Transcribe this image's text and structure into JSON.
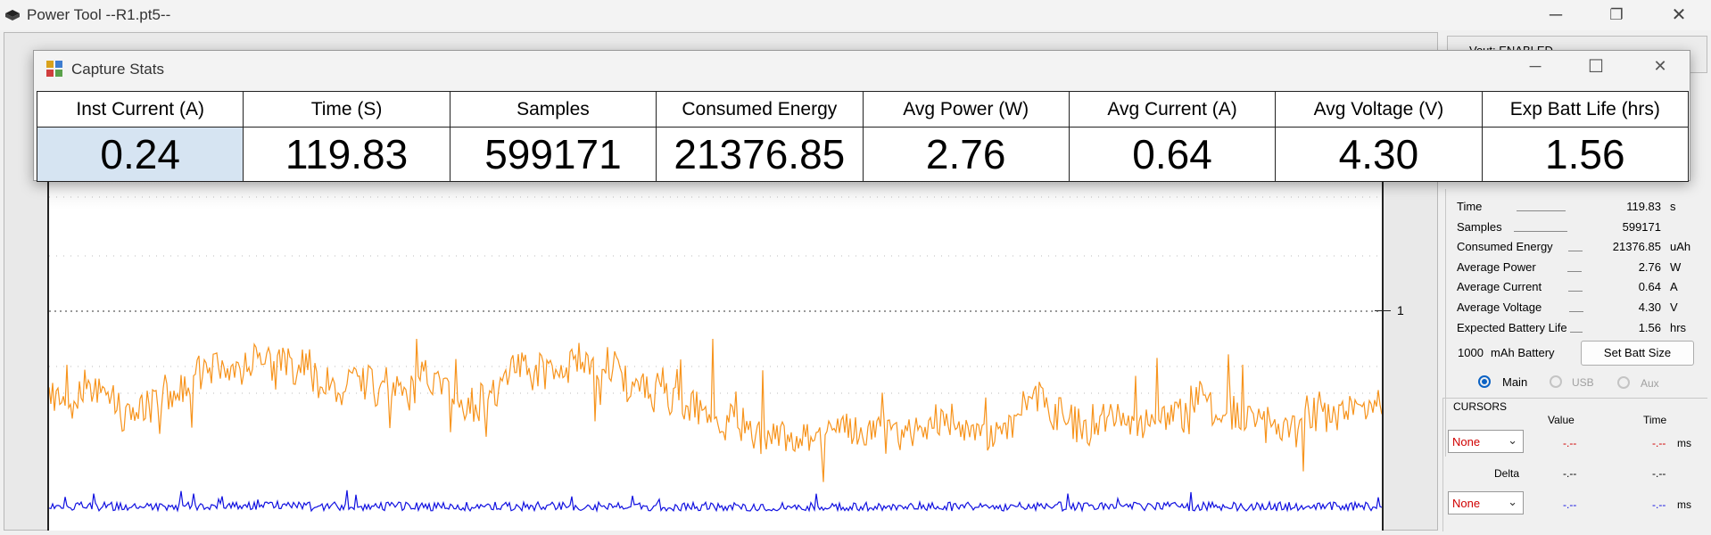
{
  "app": {
    "title": "Power Tool --R1.pt5--"
  },
  "window_controls": {
    "minimize": "─",
    "restore": "❐",
    "close": "✕"
  },
  "stats_window": {
    "title": "Capture Stats",
    "controls": {
      "minimize": "─",
      "maximize": "☐",
      "close": "✕"
    },
    "headers": [
      "Inst Current (A)",
      "Time (S)",
      "Samples",
      "Consumed Energy",
      "Avg Power (W)",
      "Avg Current (A)",
      "Avg Voltage (V)",
      "Exp Batt Life (hrs)"
    ],
    "values": [
      "0.24",
      "119.83",
      "599171",
      "21376.85",
      "2.76",
      "0.64",
      "4.30",
      "1.56"
    ]
  },
  "right_panel": {
    "partial_header": "Vout: ENABLED",
    "stats": [
      {
        "label": "Time",
        "value": "119.83",
        "unit": "s"
      },
      {
        "label": "Samples",
        "value": "599171",
        "unit": ""
      },
      {
        "label": "Consumed Energy",
        "value": "21376.85",
        "unit": "uAh"
      },
      {
        "label": "Average Power",
        "value": "2.76",
        "unit": "W"
      },
      {
        "label": "Average Current",
        "value": "0.64",
        "unit": "A"
      },
      {
        "label": "Average Voltage",
        "value": "4.30",
        "unit": "V"
      },
      {
        "label": "Expected Battery Life",
        "value": "1.56",
        "unit": "hrs"
      }
    ],
    "battery": {
      "capacity": "1000",
      "label": "mAh Battery",
      "button": "Set Batt Size"
    },
    "channels": [
      {
        "label": "Main",
        "selected": true
      },
      {
        "label": "USB",
        "selected": false
      },
      {
        "label": "Aux",
        "selected": false
      }
    ],
    "cursors": {
      "title": "CURSORS",
      "value_header": "Value",
      "time_header": "Time",
      "delta_label": "Delta",
      "cursor1": {
        "select": "None",
        "value": "-.--",
        "time": "-.--",
        "unit": "ms"
      },
      "delta": {
        "value": "-.--",
        "time": "-.--"
      },
      "cursor2": {
        "select": "None",
        "value": "-.--",
        "time": "-.--",
        "unit": "ms"
      }
    }
  },
  "chart": {
    "axis_tick_label": "1",
    "colors": {
      "current": "#f7941d",
      "voltage": "#1010e0"
    }
  }
}
